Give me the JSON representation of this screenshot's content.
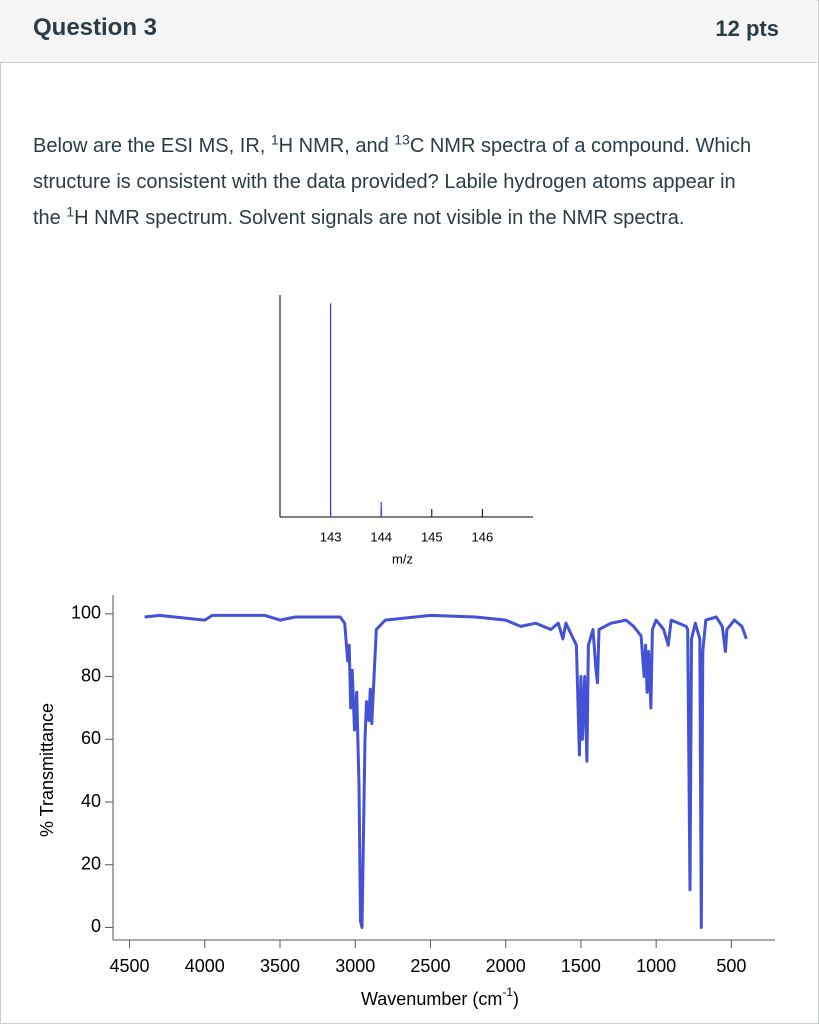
{
  "header": {
    "title": "Question 3",
    "points": "12 pts"
  },
  "question": [
    "Below are the ESI MS, IR, ",
    "1",
    "H NMR, and ",
    "13",
    "C NMR spectra of a compound.  Which structure is consistent with the data provided? Labile hydrogen atoms appear in the ",
    "1",
    "H NMR spectrum.  Solvent signals are not visible in the NMR spectra."
  ],
  "chart_data": [
    {
      "type": "bar",
      "x": [
        143,
        144
      ],
      "values": [
        100,
        7
      ],
      "color": "#3333ff",
      "xlim": [
        142,
        147
      ],
      "ylim": [
        0,
        104
      ],
      "xticks": [
        143,
        144,
        145,
        146
      ],
      "xlabel": "m/z"
    },
    {
      "type": "line",
      "color": "#4452d6",
      "x": [
        4400,
        4300,
        4200,
        4000,
        3950,
        3600,
        3500,
        3400,
        3100,
        3070,
        3050,
        3040,
        3030,
        3020,
        3005,
        2990,
        2975,
        2965,
        2955,
        2945,
        2935,
        2925,
        2910,
        2900,
        2890,
        2880,
        2860,
        2800,
        2500,
        2200,
        2000,
        1900,
        1800,
        1700,
        1650,
        1620,
        1600,
        1530,
        1510,
        1500,
        1490,
        1475,
        1460,
        1450,
        1420,
        1400,
        1390,
        1380,
        1300,
        1200,
        1150,
        1100,
        1080,
        1070,
        1060,
        1050,
        1035,
        1025,
        1000,
        950,
        920,
        900,
        850,
        800,
        790,
        775,
        765,
        740,
        710,
        700,
        690,
        670,
        600,
        560,
        540,
        530,
        480,
        430,
        400
      ],
      "values": [
        99,
        99.5,
        99,
        98,
        99.5,
        99.5,
        98,
        99,
        99,
        97,
        85,
        90,
        70,
        82,
        63,
        75,
        45,
        2,
        0,
        30,
        60,
        72,
        66,
        76,
        65,
        75,
        95,
        98,
        99.5,
        99,
        98,
        96,
        97,
        95,
        97,
        92,
        97,
        90,
        55,
        80,
        60,
        80,
        53,
        90,
        95,
        82,
        78,
        95,
        97,
        98,
        96,
        93,
        80,
        90,
        75,
        88,
        70,
        95,
        98,
        95,
        90,
        98,
        97,
        96,
        95,
        12,
        92,
        97,
        92,
        0,
        88,
        98,
        99,
        96,
        88,
        95,
        98,
        96,
        92
      ],
      "xlim": [
        4610,
        210
      ],
      "ylim": [
        -4,
        106
      ],
      "xticks": [
        4500,
        4000,
        3500,
        3000,
        2500,
        2000,
        1500,
        1000,
        500
      ],
      "yticks": [
        0,
        20,
        40,
        60,
        80,
        100
      ],
      "xlabel": [
        "Wavenumber (cm",
        "-1",
        ")"
      ],
      "ylabel": "% Transmittance"
    }
  ]
}
